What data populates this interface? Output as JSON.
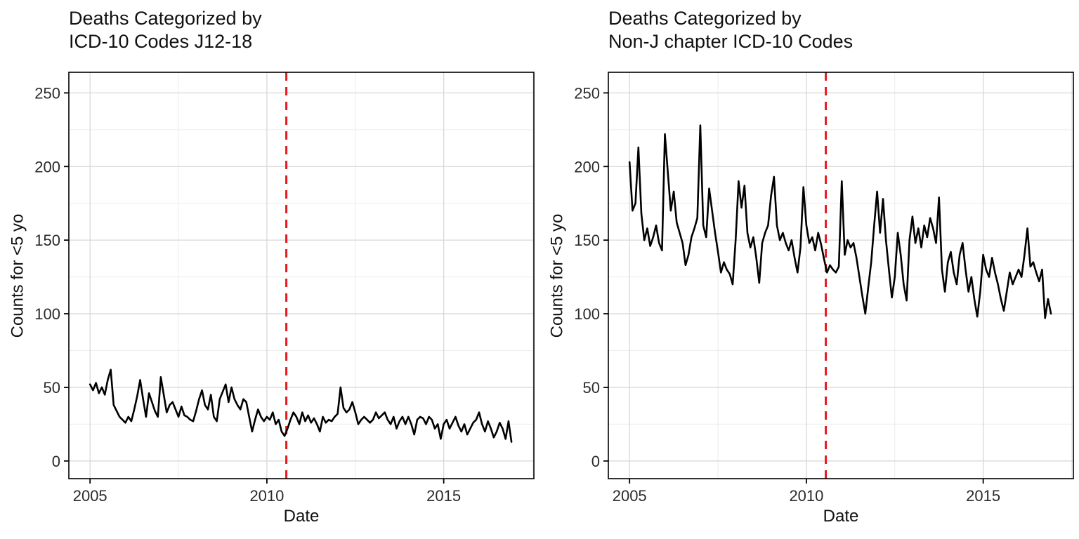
{
  "figure": {
    "background": "#ffffff",
    "text_color": "#111111",
    "tick_text_color": "#2b2b2b",
    "grid_major_color": "#d8d8d8",
    "grid_minor_color": "#ececec",
    "border_color": "#000000"
  },
  "chart_data": [
    {
      "type": "line",
      "title_lines": [
        "Deaths Categorized by",
        "ICD-10 Codes J12-18"
      ],
      "xlabel": "Date",
      "ylabel": "Counts for <5 yo",
      "x_tick_labels": [
        "2005",
        "2010",
        "2015"
      ],
      "x_tick_values": [
        2005,
        2010,
        2015
      ],
      "x_minor": [
        2007.5,
        2012.5,
        2017.5
      ],
      "y_tick_labels": [
        "0",
        "50",
        "100",
        "150",
        "200",
        "250"
      ],
      "y_tick_values": [
        0,
        50,
        100,
        150,
        200,
        250
      ],
      "y_minor": [
        25,
        75,
        125,
        175,
        225
      ],
      "xlim": [
        2004.4,
        2017.55
      ],
      "ylim": [
        -12,
        264
      ],
      "grid": true,
      "legend": "none",
      "vline": {
        "x": 2010.55,
        "color": "#e41a1c",
        "style": "dashed"
      },
      "series": [
        {
          "name": "monthly deaths (ICD-10 J12-18, <5 yo)",
          "color": "#000000",
          "x_start_year": 2005,
          "x_step_months": 1,
          "values": [
            52,
            48,
            53,
            46,
            50,
            45,
            55,
            62,
            38,
            34,
            30,
            28,
            26,
            30,
            27,
            35,
            44,
            55,
            42,
            30,
            46,
            40,
            34,
            30,
            57,
            45,
            33,
            38,
            40,
            35,
            30,
            37,
            31,
            30,
            28,
            27,
            34,
            42,
            48,
            38,
            35,
            45,
            30,
            27,
            42,
            47,
            52,
            40,
            50,
            42,
            38,
            35,
            42,
            40,
            30,
            20,
            28,
            35,
            30,
            27,
            30,
            28,
            33,
            25,
            28,
            20,
            17,
            22,
            28,
            33,
            30,
            25,
            33,
            27,
            31,
            26,
            29,
            25,
            20,
            30,
            26,
            28,
            27,
            30,
            32,
            50,
            36,
            33,
            35,
            40,
            33,
            25,
            28,
            30,
            28,
            26,
            28,
            33,
            29,
            31,
            33,
            28,
            25,
            30,
            22,
            27,
            30,
            25,
            30,
            25,
            18,
            28,
            30,
            29,
            25,
            30,
            28,
            22,
            25,
            15,
            25,
            28,
            22,
            26,
            30,
            24,
            20,
            25,
            18,
            22,
            26,
            28,
            33,
            25,
            20,
            27,
            22,
            16,
            20,
            26,
            22,
            15,
            27,
            13
          ]
        }
      ]
    },
    {
      "type": "line",
      "title_lines": [
        "Deaths Categorized by",
        "Non-J chapter ICD-10 Codes"
      ],
      "xlabel": "Date",
      "ylabel": "Counts for <5 yo",
      "x_tick_labels": [
        "2005",
        "2010",
        "2015"
      ],
      "x_tick_values": [
        2005,
        2010,
        2015
      ],
      "x_minor": [
        2007.5,
        2012.5,
        2017.5
      ],
      "y_tick_labels": [
        "0",
        "50",
        "100",
        "150",
        "200",
        "250"
      ],
      "y_tick_values": [
        0,
        50,
        100,
        150,
        200,
        250
      ],
      "y_minor": [
        25,
        75,
        125,
        175,
        225
      ],
      "xlim": [
        2004.4,
        2017.55
      ],
      "ylim": [
        -12,
        264
      ],
      "grid": true,
      "legend": "none",
      "vline": {
        "x": 2010.55,
        "color": "#e41a1c",
        "style": "dashed"
      },
      "series": [
        {
          "name": "monthly deaths (non-J chapter, <5 yo)",
          "color": "#000000",
          "x_start_year": 2005,
          "x_step_months": 1,
          "values": [
            203,
            170,
            175,
            213,
            168,
            150,
            158,
            146,
            152,
            160,
            148,
            143,
            222,
            196,
            170,
            183,
            162,
            155,
            148,
            133,
            140,
            152,
            158,
            165,
            228,
            160,
            152,
            185,
            170,
            155,
            142,
            128,
            135,
            130,
            127,
            120,
            150,
            190,
            172,
            187,
            155,
            145,
            152,
            138,
            121,
            148,
            155,
            160,
            180,
            193,
            160,
            150,
            155,
            148,
            143,
            150,
            138,
            128,
            145,
            186,
            160,
            148,
            152,
            143,
            155,
            147,
            137,
            128,
            133,
            130,
            128,
            132,
            190,
            140,
            150,
            145,
            148,
            138,
            125,
            112,
            100,
            118,
            135,
            160,
            183,
            155,
            178,
            150,
            130,
            111,
            125,
            155,
            140,
            120,
            109,
            150,
            166,
            148,
            158,
            145,
            160,
            152,
            165,
            158,
            148,
            179,
            130,
            115,
            135,
            142,
            128,
            120,
            140,
            148,
            130,
            115,
            125,
            110,
            98,
            115,
            140,
            130,
            125,
            138,
            128,
            120,
            110,
            102,
            115,
            128,
            120,
            125,
            130,
            125,
            140,
            158,
            132,
            135,
            128,
            122,
            130,
            97,
            110,
            100
          ]
        }
      ]
    }
  ]
}
